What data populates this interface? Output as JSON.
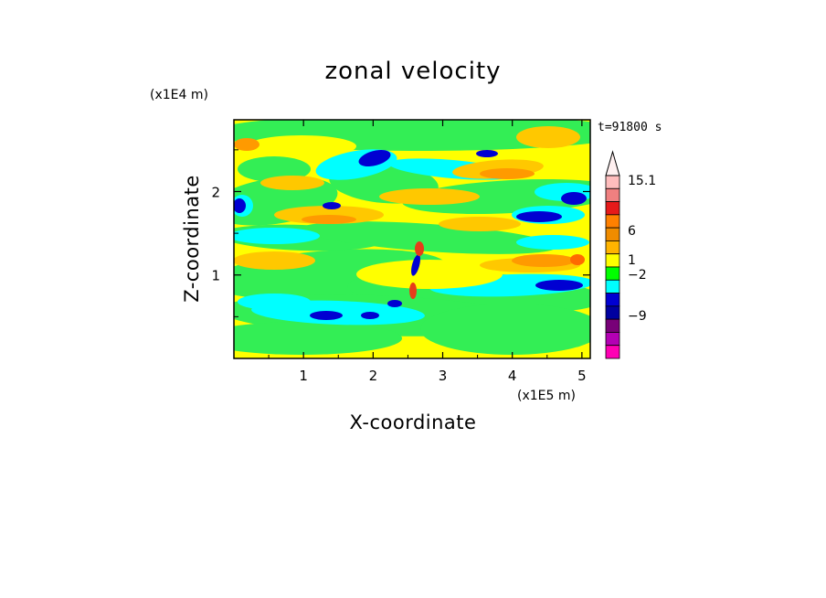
{
  "chart_data": {
    "type": "heatmap",
    "title": "zonal velocity",
    "xlabel": "X-coordinate",
    "ylabel": "Z-coordinate",
    "x_unit": "(x1E5 m)",
    "y_unit": "(x1E4 m)",
    "time_label": "t=91800 s",
    "xlim": [
      0,
      5.12
    ],
    "ylim": [
      0,
      2.86
    ],
    "x_ticks": [
      1,
      2,
      3,
      4,
      5
    ],
    "y_ticks": [
      1,
      2
    ],
    "x_tick_labels": [
      "1",
      "2",
      "3",
      "4",
      "5"
    ],
    "y_tick_labels": [
      "1",
      "2"
    ],
    "colorbar": {
      "max_label": "15.1",
      "labels": [
        "15.1",
        "6",
        "1",
        "−2",
        "−9"
      ],
      "colors_top_to_bottom": [
        "#ffbdbd",
        "#f08080",
        "#e61a1a",
        "#ff8000",
        "#f08c00",
        "#ffb400",
        "#ffff00",
        "#00ff00",
        "#00ffff",
        "#0000d2",
        "#0000a0",
        "#780078",
        "#b400b4",
        "#ff00b4"
      ]
    },
    "colors": {
      "frame": "#000000",
      "background": "#ffffff"
    }
  }
}
